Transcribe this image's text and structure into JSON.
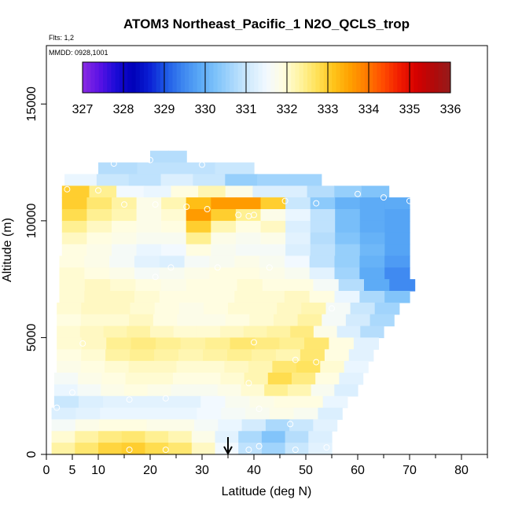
{
  "chart_data": {
    "type": "heatmap",
    "title": "ATOM3 Northeast_Pacific_1 N2O_QCLS_trop",
    "flights_note": "Flts: 1,2",
    "dates_note": "MMDD: 0928,1001",
    "xlabel": "Latitude (deg N)",
    "ylabel": "Altitude (m)",
    "xlim": [
      0,
      85
    ],
    "ylim": [
      0,
      17500
    ],
    "x_ticks": [
      0,
      5,
      10,
      20,
      30,
      40,
      50,
      60,
      70,
      80
    ],
    "x_tick_labels": [
      "0",
      "5",
      "10",
      "20",
      "30",
      "40",
      "50",
      "60",
      "70",
      "80"
    ],
    "x_minor_ticks": [
      15,
      25,
      35,
      45,
      55,
      65,
      75,
      85
    ],
    "y_ticks": [
      0,
      5000,
      10000,
      15000
    ],
    "y_tick_labels": [
      "0",
      "5000",
      "10000",
      "15000"
    ],
    "colorbar": {
      "min": 327,
      "max": 336,
      "tick_values": [
        327,
        328,
        329,
        330,
        331,
        332,
        333,
        334,
        335,
        336
      ],
      "tick_labels": [
        "327",
        "328",
        "329",
        "330",
        "331",
        "332",
        "333",
        "334",
        "335",
        "336"
      ],
      "colors": [
        "#8a2be2",
        "#5b12e6",
        "#1a0bd6",
        "#0000b8",
        "#0a1fd4",
        "#1e5ae6",
        "#3d86f0",
        "#5aa9f6",
        "#7fc3fa",
        "#a9d8fc",
        "#d2ebfd",
        "#f2f9ff",
        "#fffde0",
        "#fff3a0",
        "#ffe25a",
        "#ffc41a",
        "#ffa000",
        "#ff7a00",
        "#ff4a00",
        "#f01a00",
        "#d40000",
        "#b00a0a",
        "#951b1b"
      ]
    },
    "arrow_marker_latitude": 35,
    "bands": [
      {
        "y0": 12500,
        "y1": 13000,
        "x0": 20,
        "x1": 27,
        "values": [
          330.8,
          330.8
        ]
      },
      {
        "y0": 12000,
        "y1": 12500,
        "x0": 10,
        "x1": 40,
        "values": [
          330.8,
          330.9,
          330.9,
          331.0
        ]
      },
      {
        "y0": 11500,
        "y1": 12000,
        "x0": 3.5,
        "x1": 53,
        "values": [
          331.4,
          331.0,
          330.9,
          331.2,
          331.0,
          330.5,
          330.6,
          330.6
        ]
      },
      {
        "y0": 11000,
        "y1": 11500,
        "x0": 3,
        "x1": 66,
        "values": [
          333.0,
          332.4,
          331.5,
          331.4,
          331.9,
          332.2,
          331.8,
          331.2,
          331.2,
          330.8,
          330.5,
          330.3
        ]
      },
      {
        "y0": 10500,
        "y1": 11000,
        "x0": 3,
        "x1": 70,
        "values": [
          333.0,
          332.6,
          332.3,
          331.8,
          332.2,
          333.2,
          333.6,
          333.6,
          333.0,
          331.0,
          330.4,
          330.0,
          329.9,
          329.9
        ]
      },
      {
        "y0": 10000,
        "y1": 10500,
        "x0": 3,
        "x1": 70,
        "values": [
          332.8,
          332.4,
          332.2,
          331.8,
          332.0,
          333.6,
          333.0,
          332.4,
          331.8,
          331.4,
          330.9,
          330.2,
          329.9,
          329.8
        ]
      },
      {
        "y0": 9500,
        "y1": 10000,
        "x0": 3,
        "x1": 70,
        "values": [
          332.4,
          332.1,
          331.9,
          331.8,
          331.9,
          333.0,
          332.2,
          331.9,
          332.1,
          331.2,
          330.9,
          330.2,
          329.9,
          329.8
        ]
      },
      {
        "y0": 9000,
        "y1": 9500,
        "x0": 3,
        "x1": 70,
        "values": [
          332.1,
          331.9,
          331.8,
          331.7,
          331.7,
          332.4,
          331.8,
          331.7,
          331.8,
          331.3,
          330.8,
          330.3,
          330.0,
          329.8
        ]
      },
      {
        "y0": 8500,
        "y1": 9000,
        "x0": 3,
        "x1": 70,
        "values": [
          331.9,
          331.8,
          331.6,
          331.4,
          331.5,
          331.9,
          331.7,
          331.6,
          331.6,
          331.2,
          330.9,
          330.5,
          330.1,
          329.8
        ]
      },
      {
        "y0": 8000,
        "y1": 8500,
        "x0": 2.5,
        "x1": 70,
        "values": [
          331.9,
          331.8,
          331.6,
          331.3,
          331.2,
          331.6,
          331.7,
          331.8,
          331.7,
          331.5,
          330.9,
          330.5,
          330.0,
          329.7
        ]
      },
      {
        "y0": 7500,
        "y1": 8000,
        "x0": 2.5,
        "x1": 70,
        "values": [
          332.0,
          331.9,
          331.8,
          331.6,
          331.7,
          331.8,
          331.9,
          331.9,
          331.8,
          331.7,
          331.3,
          330.6,
          329.9,
          329.5
        ]
      },
      {
        "y0": 7000,
        "y1": 7500,
        "x0": 2.5,
        "x1": 71,
        "values": [
          332.0,
          332.1,
          332.0,
          331.9,
          331.8,
          331.9,
          331.9,
          332.0,
          331.9,
          331.9,
          331.6,
          330.8,
          329.9,
          329.5
        ]
      },
      {
        "y0": 6500,
        "y1": 7000,
        "x0": 2.5,
        "x1": 70,
        "values": [
          332.0,
          332.1,
          332.1,
          332.0,
          331.9,
          331.9,
          331.9,
          332.0,
          332.0,
          332.1,
          331.9,
          331.4,
          330.7,
          330.3
        ]
      },
      {
        "y0": 6000,
        "y1": 6500,
        "x0": 2,
        "x1": 68,
        "values": [
          332.0,
          332.1,
          332.1,
          332.0,
          331.9,
          331.8,
          331.9,
          332.0,
          332.0,
          332.1,
          332.2,
          331.6,
          331.0,
          330.6
        ]
      },
      {
        "y0": 5500,
        "y1": 6000,
        "x0": 2,
        "x1": 67,
        "values": [
          331.9,
          332.0,
          332.0,
          332.1,
          331.9,
          331.8,
          331.8,
          331.9,
          332.0,
          332.1,
          332.3,
          331.6,
          331.1,
          330.7
        ]
      },
      {
        "y0": 5000,
        "y1": 5500,
        "x0": 2,
        "x1": 65,
        "values": [
          332.0,
          332.1,
          332.2,
          332.3,
          332.1,
          332.0,
          332.0,
          332.1,
          332.2,
          332.3,
          332.5,
          331.8,
          331.2,
          330.8
        ]
      },
      {
        "y0": 4500,
        "y1": 5000,
        "x0": 2,
        "x1": 64,
        "values": [
          332.0,
          332.1,
          332.4,
          332.5,
          332.4,
          332.3,
          332.4,
          332.6,
          332.5,
          332.4,
          332.6,
          331.9,
          331.3
        ]
      },
      {
        "y0": 4000,
        "y1": 4500,
        "x0": 2,
        "x1": 63,
        "values": [
          331.9,
          332.0,
          332.3,
          332.4,
          332.3,
          332.2,
          332.3,
          332.4,
          332.3,
          332.2,
          332.6,
          331.9,
          331.3
        ]
      },
      {
        "y0": 3500,
        "y1": 4000,
        "x0": 2,
        "x1": 62,
        "values": [
          331.8,
          331.9,
          332.0,
          332.1,
          332.1,
          332.0,
          332.0,
          332.1,
          332.2,
          332.6,
          332.7,
          332.0,
          331.4
        ]
      },
      {
        "y0": 3000,
        "y1": 3500,
        "x0": 1.5,
        "x1": 61,
        "values": [
          331.6,
          331.8,
          331.9,
          332.0,
          332.0,
          331.9,
          331.9,
          332.0,
          332.2,
          332.8,
          332.5,
          331.9,
          331.3
        ]
      },
      {
        "y0": 2500,
        "y1": 3000,
        "x0": 1.5,
        "x1": 60,
        "values": [
          331.4,
          331.6,
          331.8,
          331.9,
          331.8,
          331.7,
          331.7,
          331.8,
          332.0,
          332.4,
          332.2,
          331.7,
          331.2
        ]
      },
      {
        "y0": 2000,
        "y1": 2500,
        "x0": 1.5,
        "x1": 58,
        "values": [
          331.0,
          331.2,
          331.3,
          331.3,
          331.3,
          331.3,
          331.5,
          331.7,
          331.8,
          331.9,
          331.9,
          331.4
        ]
      },
      {
        "y0": 1500,
        "y1": 2000,
        "x0": 1,
        "x1": 57,
        "values": [
          331.2,
          331.3,
          331.4,
          331.4,
          331.4,
          331.4,
          331.5,
          331.6,
          331.7,
          331.8,
          331.7,
          331.2
        ]
      },
      {
        "y0": 1000,
        "y1": 1500,
        "x0": 1,
        "x1": 56,
        "values": [
          331.6,
          331.8,
          331.9,
          331.9,
          331.8,
          331.8,
          331.6,
          331.4,
          331.1,
          330.7,
          331.0,
          331.3
        ]
      },
      {
        "y0": 500,
        "y1": 1000,
        "x0": 1,
        "x1": 55,
        "values": [
          332.0,
          332.3,
          332.5,
          332.6,
          332.4,
          332.2,
          331.8,
          331.3,
          330.7,
          330.3,
          330.8,
          331.2
        ]
      },
      {
        "y0": 0,
        "y1": 500,
        "x0": 1,
        "x1": 55,
        "values": [
          332.3,
          332.6,
          332.9,
          333.0,
          332.8,
          332.6,
          332.1,
          331.5,
          330.9,
          330.6,
          331.0,
          331.3
        ]
      }
    ],
    "sample_points": [
      [
        13,
        12450
      ],
      [
        20,
        12600
      ],
      [
        30,
        12400
      ],
      [
        4,
        11350
      ],
      [
        10,
        11300
      ],
      [
        15,
        10700
      ],
      [
        21,
        10700
      ],
      [
        27,
        10600
      ],
      [
        31,
        10500
      ],
      [
        37,
        10250
      ],
      [
        39,
        10200
      ],
      [
        40,
        10250
      ],
      [
        46,
        10850
      ],
      [
        52,
        10750
      ],
      [
        60,
        11150
      ],
      [
        65,
        11000
      ],
      [
        70,
        10850
      ],
      [
        21,
        7600
      ],
      [
        24,
        8000
      ],
      [
        33,
        8000
      ],
      [
        43,
        8000
      ],
      [
        55,
        6250
      ],
      [
        7,
        4750
      ],
      [
        40,
        4800
      ],
      [
        48,
        4050
      ],
      [
        52,
        3950
      ],
      [
        5,
        2650
      ],
      [
        39,
        3050
      ],
      [
        2,
        2000
      ],
      [
        16,
        2350
      ],
      [
        23,
        2400
      ],
      [
        41,
        1950
      ],
      [
        47,
        1300
      ],
      [
        16,
        200
      ],
      [
        23,
        200
      ],
      [
        39,
        200
      ],
      [
        41,
        350
      ],
      [
        48,
        200
      ],
      [
        54,
        300
      ]
    ]
  }
}
